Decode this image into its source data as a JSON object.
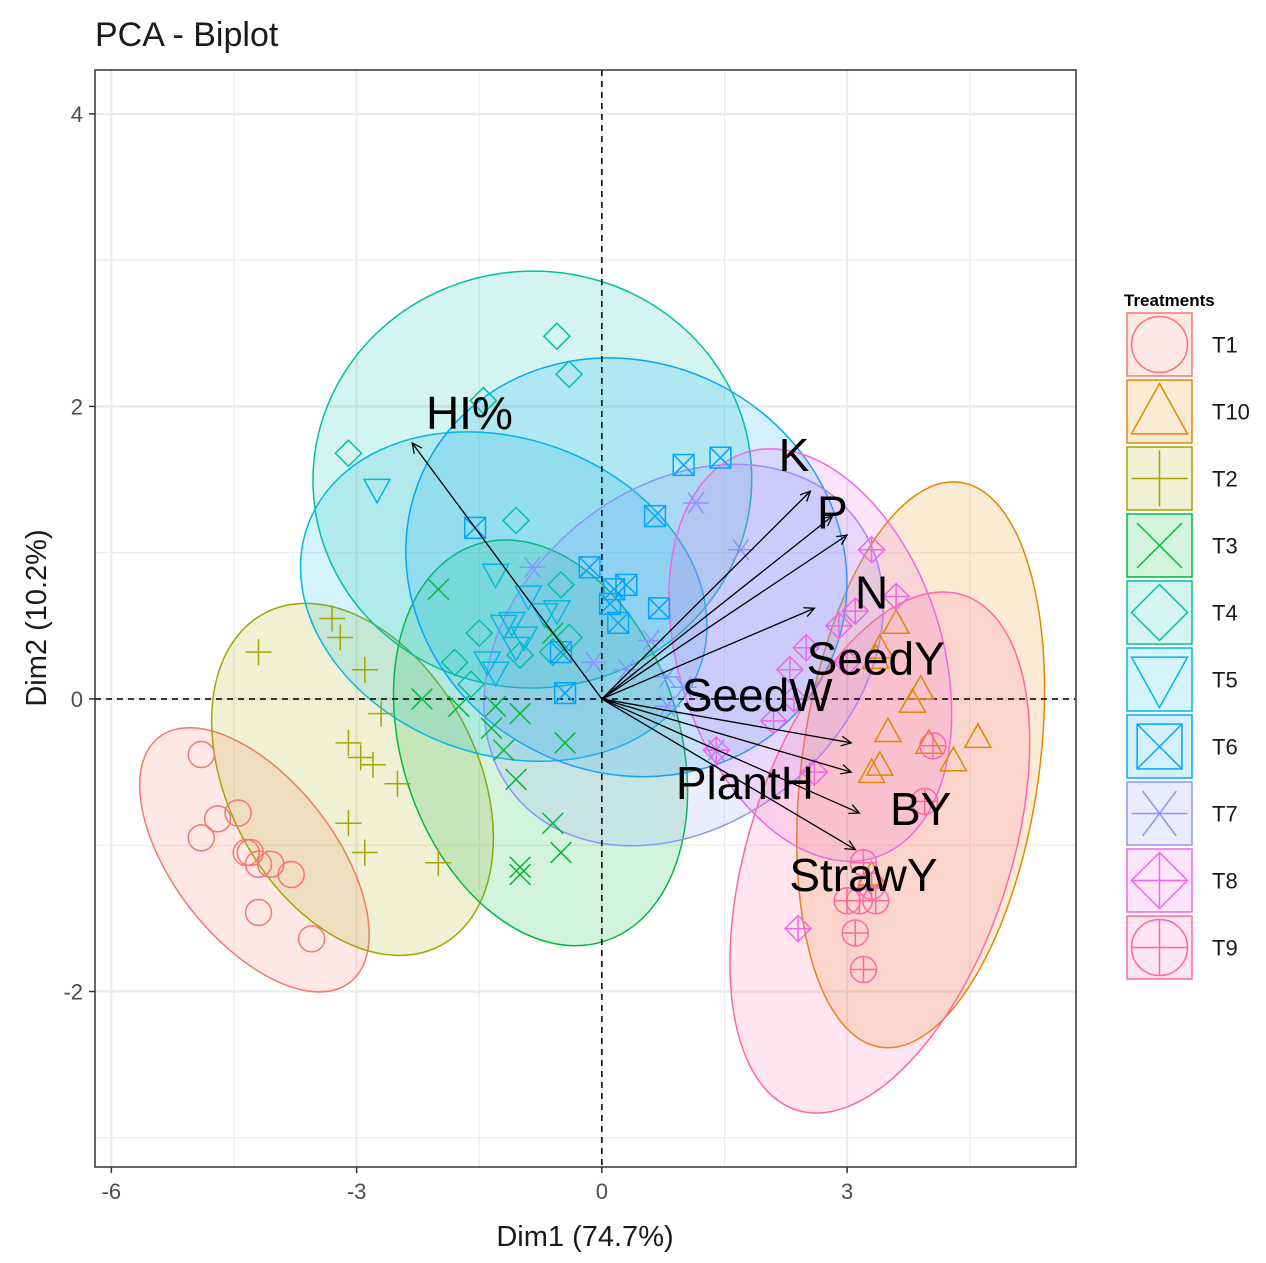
{
  "chart_data": {
    "type": "scatter",
    "subtype": "pca-biplot",
    "title": "PCA - Biplot",
    "xlabel": "Dim1 (74.7%)",
    "ylabel": "Dim2 (10.2%)",
    "xlim": [
      -6.2,
      5.8
    ],
    "ylim": [
      -3.2,
      4.3
    ],
    "xticks": [
      -6,
      -3,
      0,
      3
    ],
    "xtick_labels": [
      "-6",
      "-3",
      "0",
      "3"
    ],
    "yticks": [
      -2,
      0,
      2,
      4
    ],
    "ytick_labels": [
      "-2",
      "0",
      "2",
      "4"
    ],
    "grid": true,
    "legend_title": "Treatments",
    "legend_position": "right",
    "groups": [
      {
        "name": "T1",
        "color": "#F8766D",
        "marker": "circle",
        "ellipse": {
          "cx": -4.25,
          "cy": -1.1,
          "rx": 1.9,
          "ry": 0.55,
          "angle": -52
        },
        "points": [
          [
            -4.9,
            -0.38
          ],
          [
            -4.7,
            -0.82
          ],
          [
            -4.45,
            -0.78
          ],
          [
            -4.3,
            -1.05
          ],
          [
            -4.2,
            -1.13
          ],
          [
            -4.05,
            -1.13
          ],
          [
            -4.9,
            -0.95
          ],
          [
            -4.2,
            -1.46
          ],
          [
            -3.8,
            -1.2
          ],
          [
            -3.55,
            -1.64
          ],
          [
            -4.35,
            -1.05
          ]
        ]
      },
      {
        "name": "T10",
        "color": "#E58700",
        "marker": "triangle",
        "ellipse": {
          "cx": 3.9,
          "cy": -0.45,
          "rx": 1.45,
          "ry": 1.95,
          "angle": -8
        },
        "points": [
          [
            3.6,
            0.52
          ],
          [
            3.4,
            0.35
          ],
          [
            3.35,
            0.28
          ],
          [
            3.9,
            0.07
          ],
          [
            3.8,
            -0.02
          ],
          [
            3.5,
            -0.22
          ],
          [
            4.0,
            -0.3
          ],
          [
            4.6,
            -0.26
          ],
          [
            4.3,
            -0.42
          ],
          [
            3.4,
            -0.45
          ],
          [
            3.3,
            -0.5
          ],
          [
            3.3,
            -1.2
          ]
        ]
      },
      {
        "name": "T2",
        "color": "#A3A500",
        "marker": "plus",
        "ellipse": {
          "cx": -3.05,
          "cy": -0.55,
          "rx": 2.3,
          "ry": 0.85,
          "angle": -62
        },
        "points": [
          [
            -4.2,
            0.32
          ],
          [
            -3.3,
            0.55
          ],
          [
            -3.2,
            0.42
          ],
          [
            -2.9,
            0.2
          ],
          [
            -3.1,
            -0.3
          ],
          [
            -2.95,
            -0.4
          ],
          [
            -2.8,
            -0.45
          ],
          [
            -2.5,
            -0.58
          ],
          [
            -3.1,
            -0.85
          ],
          [
            -2.9,
            -1.05
          ],
          [
            -2.0,
            -1.12
          ],
          [
            -2.7,
            -0.1
          ]
        ]
      },
      {
        "name": "T3",
        "color": "#00BA38",
        "marker": "x",
        "ellipse": {
          "cx": -0.75,
          "cy": -0.3,
          "rx": 2.55,
          "ry": 0.95,
          "angle": -72
        },
        "points": [
          [
            -2.0,
            0.75
          ],
          [
            -2.2,
            0.0
          ],
          [
            -1.75,
            -0.05
          ],
          [
            -1.35,
            -0.2
          ],
          [
            -1.2,
            -0.35
          ],
          [
            -1.05,
            -0.55
          ],
          [
            -1.0,
            -0.1
          ],
          [
            -0.6,
            -0.85
          ],
          [
            -0.5,
            -1.05
          ],
          [
            -1.0,
            -1.15
          ],
          [
            -1.0,
            -1.2
          ],
          [
            -0.45,
            -0.3
          ],
          [
            -1.3,
            -0.05
          ],
          [
            -0.6,
            0.45
          ]
        ]
      },
      {
        "name": "T4",
        "color": "#00C19F",
        "marker": "diamond",
        "ellipse": {
          "cx": -0.85,
          "cy": 1.5,
          "rx": 2.55,
          "ry": 1.5,
          "angle": -88
        },
        "points": [
          [
            -0.55,
            2.48
          ],
          [
            -0.4,
            2.22
          ],
          [
            -1.45,
            2.04
          ],
          [
            -3.1,
            1.68
          ],
          [
            -1.05,
            1.22
          ],
          [
            -0.5,
            0.78
          ],
          [
            -0.4,
            0.42
          ],
          [
            -1.5,
            0.45
          ],
          [
            -0.6,
            0.32
          ],
          [
            -1.8,
            0.25
          ],
          [
            -1.6,
            0.1
          ],
          [
            -1.0,
            0.3
          ]
        ]
      },
      {
        "name": "T5",
        "color": "#00B9E3",
        "marker": "tri-down",
        "ellipse": {
          "cx": -1.2,
          "cy": 0.7,
          "rx": 2.55,
          "ry": 1.08,
          "angle": -20
        },
        "points": [
          [
            -2.75,
            1.43
          ],
          [
            -1.3,
            0.85
          ],
          [
            -0.9,
            0.7
          ],
          [
            -0.7,
            0.58
          ],
          [
            -1.2,
            0.5
          ],
          [
            -0.95,
            0.42
          ],
          [
            -1.05,
            0.35
          ],
          [
            -1.4,
            0.25
          ],
          [
            -1.3,
            0.18
          ],
          [
            -0.55,
            0.6
          ],
          [
            -1.1,
            0.52
          ]
        ]
      },
      {
        "name": "T6",
        "color": "#00A5FF",
        "marker": "square-x",
        "ellipse": {
          "cx": 0.3,
          "cy": 0.9,
          "rx": 2.75,
          "ry": 1.4,
          "angle": -28
        },
        "points": [
          [
            -1.55,
            1.17
          ],
          [
            1.0,
            1.6
          ],
          [
            1.45,
            1.65
          ],
          [
            0.65,
            1.25
          ],
          [
            -0.15,
            0.9
          ],
          [
            0.15,
            0.75
          ],
          [
            0.3,
            0.78
          ],
          [
            0.1,
            0.65
          ],
          [
            0.7,
            0.62
          ],
          [
            0.2,
            0.52
          ],
          [
            -0.5,
            0.32
          ],
          [
            -0.45,
            0.04
          ]
        ]
      },
      {
        "name": "T7",
        "color": "#8B93FF",
        "marker": "asterisk",
        "ellipse": {
          "cx": 1.0,
          "cy": 0.3,
          "rx": 2.05,
          "ry": 1.5,
          "angle": -50
        },
        "points": [
          [
            1.15,
            1.34
          ],
          [
            -0.85,
            0.9
          ],
          [
            1.7,
            1.02
          ],
          [
            0.6,
            0.4
          ],
          [
            0.3,
            0.2
          ],
          [
            0.8,
            0.15
          ],
          [
            1.0,
            0.08
          ],
          [
            -0.1,
            0.25
          ],
          [
            1.4,
            -0.35
          ],
          [
            0.8,
            -0.05
          ]
        ]
      },
      {
        "name": "T8",
        "color": "#F067E9",
        "marker": "diamond-plus",
        "ellipse": {
          "cx": 2.55,
          "cy": 0.3,
          "rx": 2.6,
          "ry": 0.9,
          "angle": -72
        },
        "points": [
          [
            3.3,
            1.02
          ],
          [
            3.6,
            0.7
          ],
          [
            3.1,
            0.6
          ],
          [
            2.9,
            0.5
          ],
          [
            2.5,
            0.35
          ],
          [
            2.3,
            0.2
          ],
          [
            3.0,
            0.25
          ],
          [
            2.35,
            0.0
          ],
          [
            2.1,
            -0.15
          ],
          [
            2.6,
            -0.5
          ],
          [
            1.4,
            -0.35
          ],
          [
            2.4,
            -1.57
          ]
        ]
      },
      {
        "name": "T9",
        "color": "#FF67A4",
        "marker": "circle-plus",
        "ellipse": {
          "cx": 3.4,
          "cy": -1.05,
          "rx": 1.6,
          "ry": 1.85,
          "angle": -18
        },
        "points": [
          [
            4.05,
            -0.32
          ],
          [
            3.95,
            -0.7
          ],
          [
            3.2,
            -1.12
          ],
          [
            3.0,
            -1.38
          ],
          [
            3.15,
            -1.38
          ],
          [
            3.35,
            -1.38
          ],
          [
            3.1,
            -1.6
          ],
          [
            3.2,
            -1.85
          ],
          [
            3.3,
            -1.28
          ]
        ]
      }
    ],
    "variables": [
      {
        "name": "HI%",
        "x": -2.32,
        "y": 1.75
      },
      {
        "name": "K",
        "x": 2.55,
        "y": 1.42
      },
      {
        "name": "P",
        "x": 2.82,
        "y": 1.25
      },
      {
        "name": "N",
        "x": 3.0,
        "y": 1.12
      },
      {
        "name": "SeedW",
        "x": 2.6,
        "y": 0.62
      },
      {
        "name": "SeedY",
        "x": 3.05,
        "y": -0.3
      },
      {
        "name": "PlantH",
        "x": 3.05,
        "y": -0.5
      },
      {
        "name": "BY",
        "x": 3.15,
        "y": -0.78
      },
      {
        "name": "StrawY",
        "x": 3.1,
        "y": -1.03
      }
    ],
    "variable_label_offsets": {
      "HI%": [
        0.7,
        0.18
      ],
      "K": [
        -0.2,
        0.22
      ],
      "P": [
        0.0,
        0.0
      ],
      "N": [
        0.3,
        -0.42
      ],
      "SeedW": [
        -0.7,
        -0.62
      ],
      "SeedY": [
        0.3,
        0.55
      ],
      "PlantH": [
        -1.3,
        -0.1
      ],
      "BY": [
        0.75,
        0.0
      ],
      "StrawY": [
        0.1,
        -0.2
      ]
    }
  }
}
